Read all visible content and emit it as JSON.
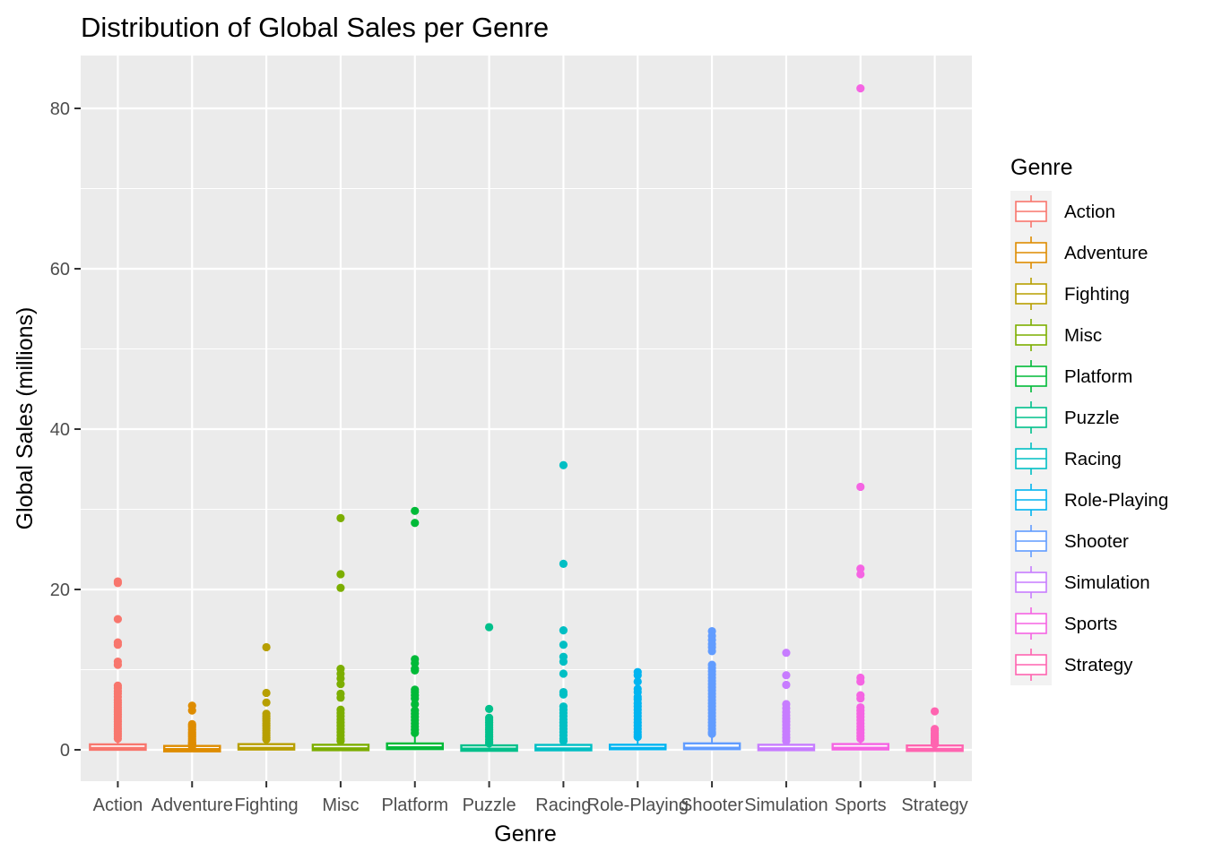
{
  "chart_data": {
    "type": "boxplot",
    "title": "Distribution of Global Sales per Genre",
    "xlabel": "Genre",
    "ylabel": "Global Sales (millions)",
    "ylim": [
      -4,
      86
    ],
    "y_ticks": [
      0,
      20,
      40,
      60,
      80
    ],
    "grid": true,
    "legend_title": "Genre",
    "legend_position": "right",
    "categories": [
      "Action",
      "Adventure",
      "Fighting",
      "Misc",
      "Platform",
      "Puzzle",
      "Racing",
      "Role-Playing",
      "Shooter",
      "Simulation",
      "Sports",
      "Strategy"
    ],
    "series": [
      {
        "name": "Action",
        "color": "#F8766D",
        "q1": 0.07,
        "median": 0.19,
        "q3": 0.5,
        "whisker_low": 0.01,
        "whisker_high": 1.1,
        "outliers": [
          21.0,
          20.8,
          16.3,
          13.4,
          13.1,
          11.0,
          10.6,
          8.0,
          7.7,
          7.3,
          7.0,
          6.6,
          6.2,
          5.9,
          5.6,
          5.3,
          5.0,
          4.7,
          4.4,
          4.1,
          3.8,
          3.5,
          3.2,
          2.9,
          2.6,
          2.3,
          2.0,
          1.7,
          1.4
        ]
      },
      {
        "name": "Adventure",
        "color": "#DE8C00",
        "q1": 0.02,
        "median": 0.06,
        "q3": 0.16,
        "whisker_low": 0.01,
        "whisker_high": 0.37,
        "outliers": [
          5.5,
          4.9,
          3.2,
          3.0,
          2.8,
          2.5,
          2.2,
          2.0,
          1.8,
          1.6,
          1.4,
          1.2,
          1.0,
          0.9,
          0.8,
          0.7,
          0.6,
          0.5,
          0.4
        ]
      },
      {
        "name": "Fighting",
        "color": "#B79F00",
        "q1": 0.08,
        "median": 0.21,
        "q3": 0.55,
        "whisker_low": 0.01,
        "whisker_high": 1.2,
        "outliers": [
          12.8,
          7.1,
          5.9,
          4.5,
          4.2,
          3.9,
          3.6,
          3.3,
          3.0,
          2.7,
          2.4,
          2.1,
          1.8,
          1.5,
          1.3
        ]
      },
      {
        "name": "Misc",
        "color": "#7CAE00",
        "q1": 0.06,
        "median": 0.16,
        "q3": 0.41,
        "whisker_low": 0.01,
        "whisker_high": 0.95,
        "outliers": [
          28.9,
          21.9,
          20.2,
          10.1,
          9.5,
          8.9,
          8.2,
          7.0,
          6.5,
          5.0,
          4.6,
          4.2,
          3.8,
          3.4,
          3.0,
          2.6,
          2.2,
          1.8,
          1.4,
          1.1
        ]
      },
      {
        "name": "Platform",
        "color": "#00BA38",
        "q1": 0.09,
        "median": 0.28,
        "q3": 0.79,
        "whisker_low": 0.01,
        "whisker_high": 1.8,
        "outliers": [
          29.8,
          28.3,
          11.3,
          10.8,
          10.1,
          9.9,
          7.5,
          7.2,
          6.8,
          6.4,
          5.7,
          4.9,
          4.5,
          4.1,
          3.7,
          3.3,
          2.9,
          2.5,
          2.1
        ]
      },
      {
        "name": "Puzzle",
        "color": "#00C08B",
        "q1": 0.02,
        "median": 0.11,
        "q3": 0.3,
        "whisker_low": 0.01,
        "whisker_high": 0.7,
        "outliers": [
          15.3,
          5.1,
          4.0,
          3.7,
          3.4,
          3.1,
          2.8,
          2.5,
          2.2,
          1.9,
          1.6,
          1.3,
          1.0,
          0.8
        ]
      },
      {
        "name": "Racing",
        "color": "#00BFC4",
        "q1": 0.05,
        "median": 0.14,
        "q3": 0.39,
        "whisker_low": 0.01,
        "whisker_high": 0.9,
        "outliers": [
          35.5,
          23.2,
          14.9,
          13.1,
          11.6,
          11.0,
          9.5,
          7.2,
          6.9,
          5.4,
          5.0,
          4.6,
          4.2,
          3.8,
          3.4,
          3.0,
          2.6,
          2.2,
          1.8,
          1.4,
          1.1
        ]
      },
      {
        "name": "Role-Playing",
        "color": "#00B4F0",
        "q1": 0.07,
        "median": 0.19,
        "q3": 0.63,
        "whisker_low": 0.01,
        "whisker_high": 1.47,
        "outliers": [
          9.7,
          9.3,
          8.5,
          7.6,
          7.2,
          6.6,
          6.3,
          5.8,
          5.4,
          5.0,
          4.6,
          4.2,
          3.8,
          3.4,
          3.0,
          2.6,
          2.2,
          1.9,
          1.6
        ]
      },
      {
        "name": "Shooter",
        "color": "#619CFF",
        "q1": 0.08,
        "median": 0.23,
        "q3": 0.8,
        "whisker_low": 0.01,
        "whisker_high": 1.9,
        "outliers": [
          14.8,
          14.2,
          13.7,
          13.2,
          12.8,
          12.3,
          10.6,
          10.2,
          9.8,
          9.4,
          9.0,
          8.6,
          8.2,
          7.8,
          7.4,
          7.0,
          6.6,
          6.2,
          5.8,
          5.4,
          5.0,
          4.6,
          4.2,
          3.8,
          3.4,
          3.0,
          2.6,
          2.2,
          2.0
        ]
      },
      {
        "name": "Simulation",
        "color": "#C77CFF",
        "q1": 0.05,
        "median": 0.16,
        "q3": 0.42,
        "whisker_low": 0.01,
        "whisker_high": 0.98,
        "outliers": [
          12.1,
          9.3,
          8.1,
          5.7,
          5.2,
          4.7,
          4.3,
          3.9,
          3.5,
          3.1,
          2.7,
          2.3,
          1.9,
          1.5,
          1.1
        ]
      },
      {
        "name": "Sports",
        "color": "#F564E3",
        "q1": 0.09,
        "median": 0.22,
        "q3": 0.56,
        "whisker_low": 0.01,
        "whisker_high": 1.25,
        "outliers": [
          82.5,
          32.8,
          22.6,
          21.9,
          9.0,
          8.5,
          6.8,
          6.4,
          5.3,
          4.9,
          4.5,
          4.1,
          3.7,
          3.3,
          2.9,
          2.5,
          2.1,
          1.7,
          1.4
        ]
      },
      {
        "name": "Strategy",
        "color": "#FF64B0",
        "q1": 0.02,
        "median": 0.09,
        "q3": 0.27,
        "whisker_low": 0.01,
        "whisker_high": 0.6,
        "outliers": [
          4.8,
          2.6,
          2.4,
          2.1,
          1.9,
          1.7,
          1.5,
          1.3,
          1.1,
          0.9,
          0.8,
          0.7
        ]
      }
    ]
  }
}
